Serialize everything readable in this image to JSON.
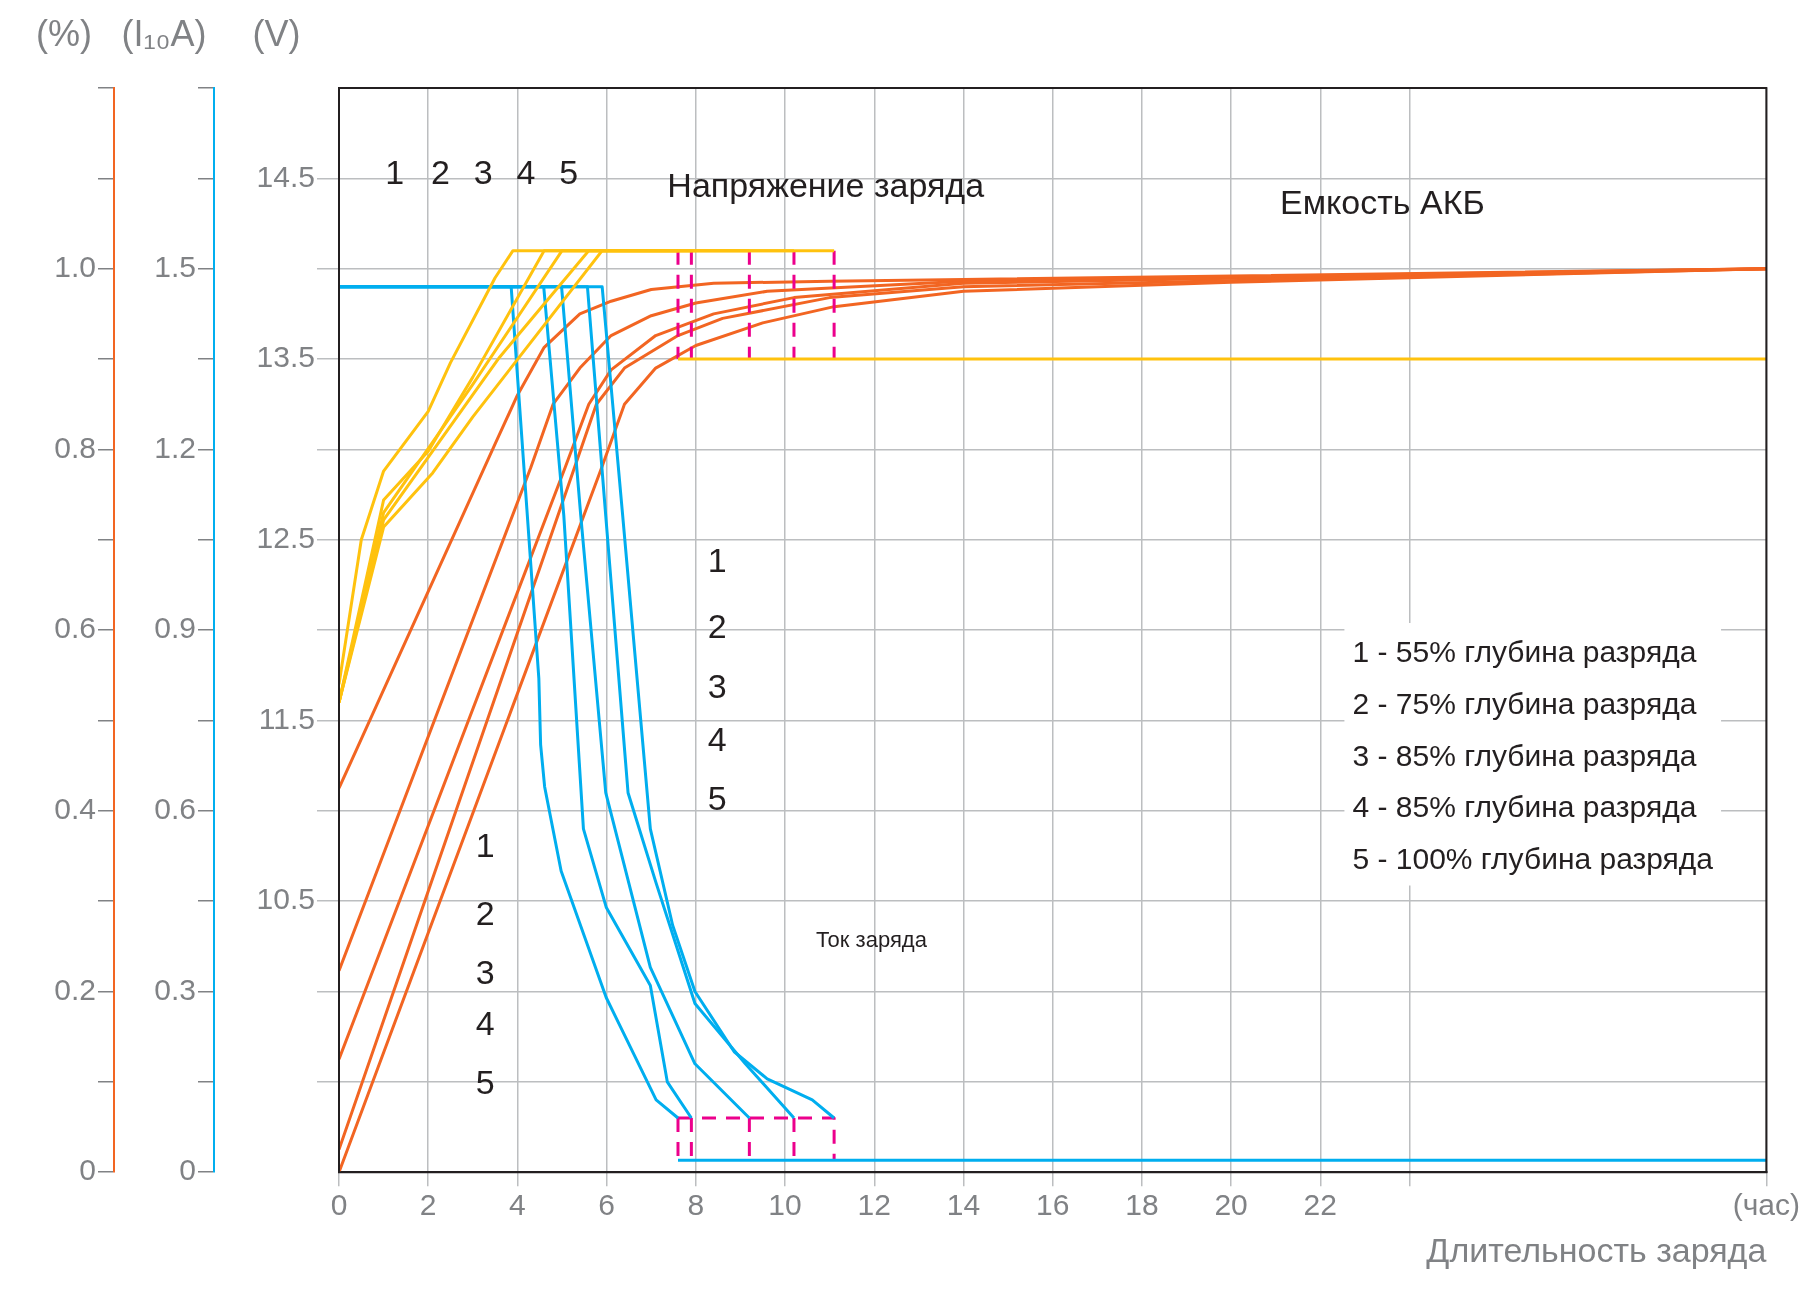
{
  "chart_data": {
    "type": "line",
    "xlabel": "Длительность заряда",
    "ylabel": "(V)",
    "y2label": "(I₁₀A)",
    "y3label": "(%)",
    "xlim": [
      0,
      32
    ],
    "xticks": [
      0,
      2,
      4,
      6,
      8,
      10,
      12,
      14,
      16,
      18,
      20,
      22,
      {
        "value": 24,
        "label": null
      },
      {
        "value": 32,
        "label": "(час)"
      }
    ],
    "ylim": [
      9,
      15
    ],
    "yticks": [
      {
        "value": 9.5,
        "label": null
      },
      {
        "value": 10,
        "label": null
      },
      10.5,
      {
        "value": 11,
        "label": null
      },
      11.5,
      {
        "value": 12,
        "label": null
      },
      12.5,
      {
        "value": 13,
        "label": null
      },
      13.5,
      {
        "value": 14,
        "label": null
      },
      14.5
    ],
    "y2lim": [
      0,
      1.8
    ],
    "y2ticks": [
      0,
      {
        "value": 0.15,
        "label": null
      },
      0.3,
      {
        "value": 0.45,
        "label": null
      },
      0.6,
      {
        "value": 0.75,
        "label": null
      },
      0.9,
      {
        "value": 1.05,
        "label": null
      },
      1.2,
      {
        "value": 1.35,
        "label": null
      },
      1.5,
      {
        "value": 1.65,
        "label": null
      },
      {
        "value": 1.8,
        "label": null
      }
    ],
    "y3lim": [
      0,
      1.2
    ],
    "y3ticks": [
      0,
      {
        "value": 0.1,
        "label": null
      },
      0.2,
      {
        "value": 0.3,
        "label": null
      },
      0.4,
      {
        "value": 0.5,
        "label": null
      },
      0.6,
      {
        "value": 0.7,
        "label": null
      },
      0.8,
      {
        "value": 0.9,
        "label": null
      },
      {
        "value": 1,
        "label": "1.0"
      },
      {
        "value": 1.1,
        "label": null
      },
      {
        "value": 1.2,
        "label": null
      }
    ],
    "grid": true,
    "legend": false,
    "series": [
      {
        "color": "#ffc20e",
        "axis": "y",
        "x": [
          0,
          0.5,
          1.0,
          2.0,
          2.5,
          3.5,
          3.9,
          7.6
        ],
        "values": [
          11.7,
          12.5,
          12.88,
          13.21,
          13.48,
          13.95,
          14.1,
          14.1
        ]
      },
      {
        "color": "#ffc20e",
        "axis": "y",
        "x": [
          0,
          1.0,
          2.0,
          3.0,
          4.6,
          7.9
        ],
        "values": [
          11.6,
          12.72,
          12.99,
          13.4,
          14.1,
          14.1
        ]
      },
      {
        "color": "#ffc20e",
        "axis": "y",
        "x": [
          0,
          1.0,
          3.0,
          5.0,
          9.2
        ],
        "values": [
          11.6,
          12.65,
          13.36,
          14.1,
          14.1
        ]
      },
      {
        "color": "#ffc20e",
        "axis": "y",
        "x": [
          0,
          1.0,
          3.6,
          5.6,
          10.2
        ],
        "values": [
          11.6,
          12.61,
          13.51,
          14.1,
          14.1
        ]
      },
      {
        "color": "#ffc20e",
        "axis": "y",
        "x": [
          0,
          1.0,
          2.1,
          3.0,
          5.9,
          11.1
        ],
        "values": [
          11.6,
          12.57,
          12.87,
          13.18,
          14.1,
          14.1
        ]
      },
      {
        "color": "#ffc20e",
        "axis": "y",
        "x": [
          7.6,
          32
        ],
        "values": [
          13.5,
          13.5
        ]
      },
      {
        "color": "#ec008c",
        "axis": "y",
        "line_style": "dashed",
        "x": [
          7.6,
          7.6,
          null,
          7.9,
          7.9,
          null,
          9.2,
          9.2,
          null,
          10.2,
          10.2,
          null,
          11.1,
          11.1
        ],
        "values": [
          14.1,
          13.5,
          null,
          14.1,
          13.5,
          null,
          14.1,
          13.5,
          null,
          14.1,
          13.5,
          null,
          14.1,
          13.5
        ]
      },
      {
        "color": "#00aeef",
        "axis": "y2",
        "x": [
          0,
          3.86,
          4.48,
          4.52,
          4.61,
          4.98,
          5.99,
          7.11,
          7.6
        ],
        "values": [
          1.47,
          1.47,
          0.82,
          0.71,
          0.64,
          0.5,
          0.29,
          0.12,
          0.09
        ]
      },
      {
        "color": "#00aeef",
        "axis": "y2",
        "x": [
          0,
          4.59,
          5.04,
          5.48,
          5.99,
          6.98,
          7.36,
          7.9
        ],
        "values": [
          1.47,
          1.47,
          1.09,
          0.57,
          0.44,
          0.31,
          0.15,
          0.09
        ]
      },
      {
        "color": "#00aeef",
        "axis": "y2",
        "x": [
          0,
          4.99,
          5.42,
          5.98,
          6.98,
          7.98,
          9.2
        ],
        "values": [
          1.47,
          1.47,
          1.09,
          0.63,
          0.34,
          0.18,
          0.09
        ]
      },
      {
        "color": "#00aeef",
        "axis": "y2",
        "x": [
          0,
          5.57,
          5.98,
          6.48,
          7.11,
          7.98,
          9.11,
          10.2
        ],
        "values": [
          1.47,
          1.47,
          1.09,
          0.63,
          0.48,
          0.28,
          0.18,
          0.09
        ]
      },
      {
        "color": "#00aeef",
        "axis": "y2",
        "x": [
          0,
          5.9,
          6.36,
          6.98,
          7.48,
          7.98,
          8.86,
          9.6,
          10.61,
          11.1
        ],
        "values": [
          1.47,
          1.47,
          1.09,
          0.57,
          0.41,
          0.3,
          0.2,
          0.155,
          0.12,
          0.09
        ]
      },
      {
        "color": "#00aeef",
        "axis": "y2",
        "x": [
          7.6,
          32
        ],
        "values": [
          0.02,
          0.02
        ]
      },
      {
        "color": "#ec008c",
        "axis": "y2",
        "line_style": "dashed",
        "x": [
          7.6,
          11.1,
          11.1,
          null,
          7.6,
          7.6,
          null,
          7.9,
          7.9,
          null,
          9.2,
          9.2,
          null,
          10.2,
          10.2
        ],
        "values": [
          0.09,
          0.09,
          0.02,
          null,
          0.09,
          0.02,
          null,
          0.09,
          0.02,
          null,
          0.09,
          0.02,
          null,
          0.09,
          0.02
        ]
      },
      {
        "color": "#f26522",
        "axis": "y3",
        "x": [
          0,
          3.5,
          4.0,
          4.6,
          5.4,
          6.1,
          7.0,
          8.4,
          11,
          14,
          32
        ],
        "values": [
          0.425,
          0.806,
          0.86,
          0.913,
          0.95,
          0.964,
          0.977,
          0.984,
          0.986,
          0.988,
          1.0
        ]
      },
      {
        "color": "#f26522",
        "axis": "y3",
        "x": [
          0,
          4.3,
          4.8,
          5.4,
          6.1,
          7.0,
          8.0,
          9.6,
          14,
          32
        ],
        "values": [
          0.223,
          0.78,
          0.85,
          0.89,
          0.926,
          0.948,
          0.962,
          0.975,
          0.986,
          1.0
        ]
      },
      {
        "color": "#f26522",
        "axis": "y3",
        "x": [
          0,
          5.07,
          5.6,
          6.1,
          7.1,
          8.4,
          10.2,
          14,
          32
        ],
        "values": [
          0.125,
          0.78,
          0.85,
          0.888,
          0.926,
          0.95,
          0.968,
          0.984,
          1.0
        ]
      },
      {
        "color": "#f26522",
        "axis": "y3",
        "x": [
          0,
          5.28,
          5.77,
          6.4,
          7.6,
          8.6,
          11,
          14,
          32
        ],
        "values": [
          0.025,
          0.78,
          0.85,
          0.89,
          0.926,
          0.945,
          0.968,
          0.98,
          1.0
        ]
      },
      {
        "color": "#f26522",
        "axis": "y3",
        "x": [
          0,
          5.89,
          6.4,
          7.1,
          8.0,
          9.5,
          11.1,
          14,
          20,
          32
        ],
        "values": [
          0,
          0.78,
          0.85,
          0.89,
          0.915,
          0.94,
          0.958,
          0.975,
          0.985,
          1.0
        ]
      }
    ],
    "annotations": [
      "1",
      "2",
      "3",
      "4",
      "5",
      "Напряжение заряда",
      "Емкость АКБ",
      "1",
      "2",
      "3",
      "4",
      "5",
      "1",
      "2",
      "3",
      "4",
      "5",
      "Ток заряда",
      "1 - 55% глубина разряда",
      "2 - 75% глубина разряда",
      "3 - 85% глубина разряда",
      "4 - 85% глубина разряда",
      "5 - 100% глубина разряда"
    ]
  }
}
